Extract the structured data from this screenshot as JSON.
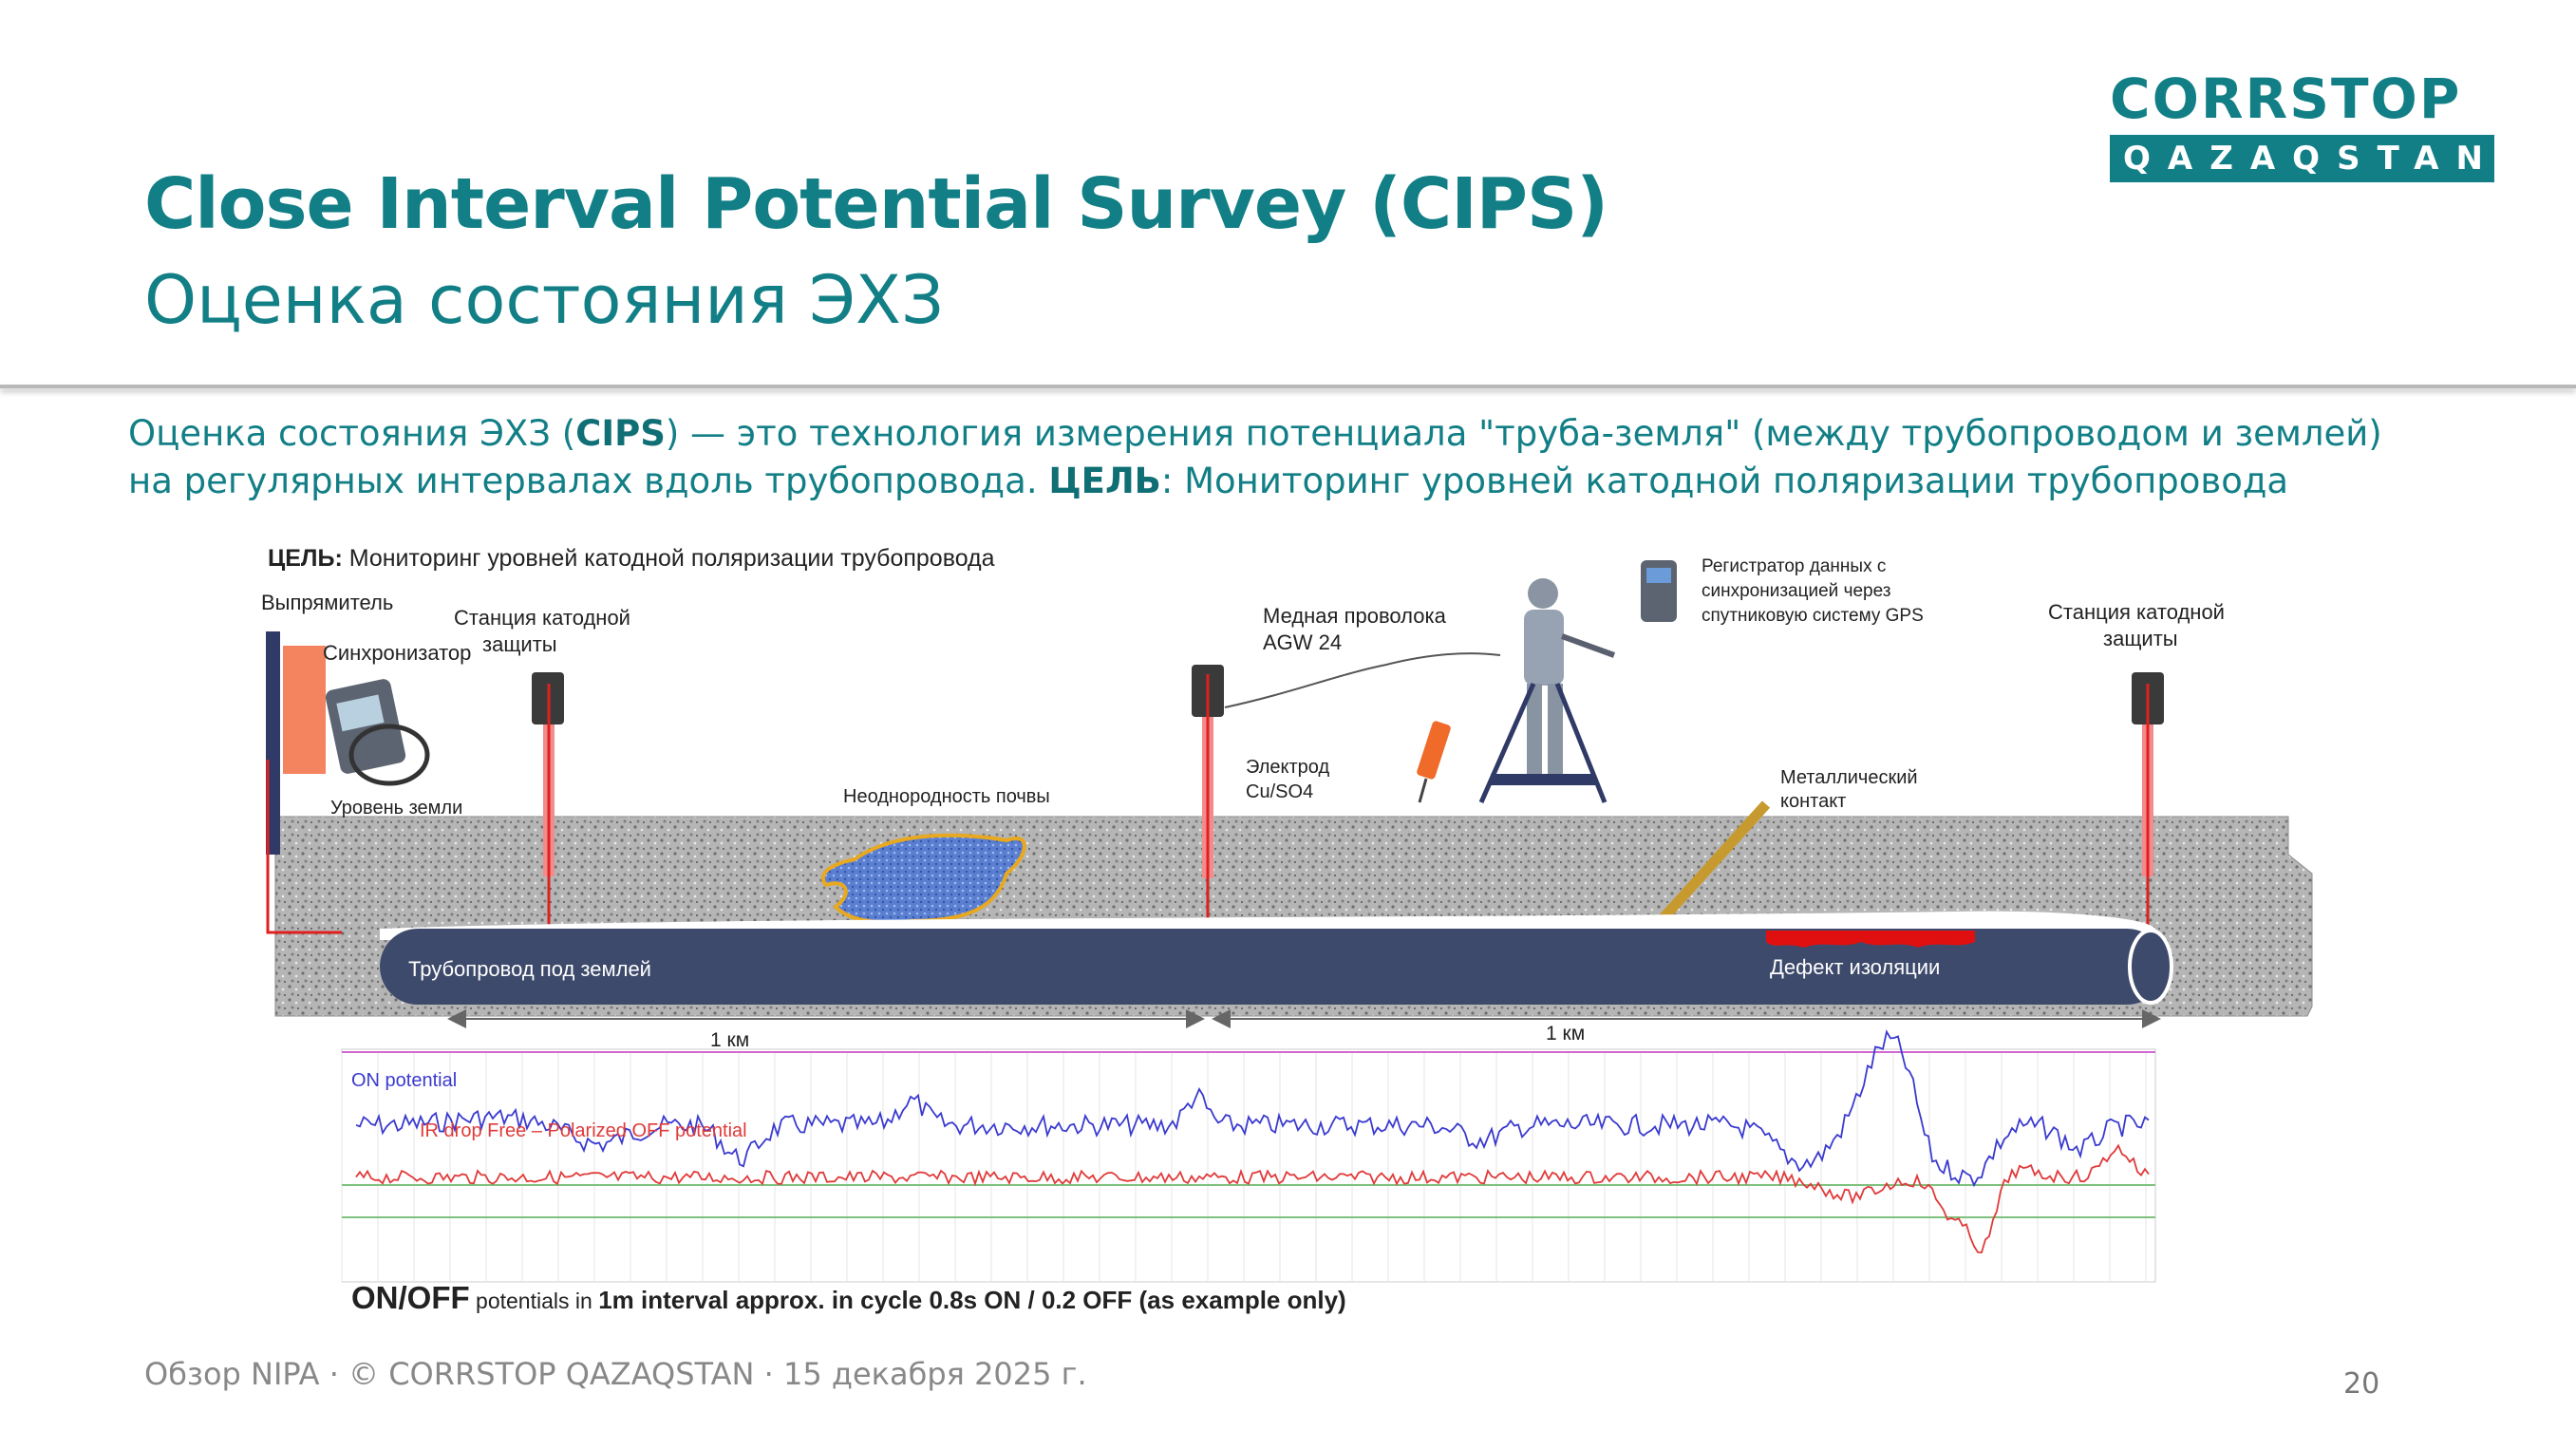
{
  "slide": {
    "title": "Close Interval Potential Survey (CIPS)",
    "subtitle": "Оценка состояния ЭХЗ",
    "logo_top": "CORRSTOP",
    "logo_bottom": "QAZAQSTAN",
    "page_number": "20",
    "footer": "Обзор NIPA · © CORRSTOP QAZAQSTAN · 15 декабря 2025 г."
  },
  "intro": {
    "line1_a": "Оценка состояния ЭХЗ (",
    "line1_bold": "CIPS",
    "line1_b": ") — это технология измерения потенциала \"труба-земля\" (между трубопроводом и землей)",
    "line2_a": "на регулярных интервалах вдоль трубопровода. ",
    "line2_bold": "ЦЕЛЬ",
    "line2_b": ": Мониторинг уровней катодной поляризации трубопровода"
  },
  "figure": {
    "goal_bold": "ЦЕЛЬ:",
    "goal_text": " Мониторинг уровней катодной поляризации трубопровода",
    "rectifier": "Выпрямитель",
    "synchronizer": "Синхронизатор",
    "cp_station_1a": "Станция катодной",
    "cp_station_1b": "защиты",
    "ground_level": "Уровень земли",
    "soil_heterogeneity": "Неоднородность почвы",
    "copper_wire_a": "Медная проволока",
    "copper_wire_b": "AGW 24",
    "electrode_a": "Электрод",
    "electrode_b": "Cu/SO4",
    "logger_a": "Регистратор данных с",
    "logger_b": "синхронизацией через",
    "logger_c": "спутниковую систему GPS",
    "metal_contact_a": "Металлический",
    "metal_contact_b": "контакт",
    "cp_station_2a": "Станция катодной",
    "cp_station_2b": "защиты",
    "pipeline": "Трубопровод под землей",
    "coating_defect": "Дефект изоляции",
    "distance_1": "1 км",
    "distance_2": "1 км",
    "on_potential": "ON potential",
    "off_potential": "IR drop Free – Polarized OFF potential",
    "caption_bold1": "ON/OFF",
    "caption_small": " potentials in ",
    "caption_bold2": "1m interval approx. in cycle 0.8s ON / 0.2 OFF (as example only)",
    "colors": {
      "accent": "#127f86",
      "pipe": "#3d4a6b",
      "on_line": "#3a3ad0",
      "off_line": "#e03a3a",
      "soil": "#a6a6a6"
    }
  }
}
